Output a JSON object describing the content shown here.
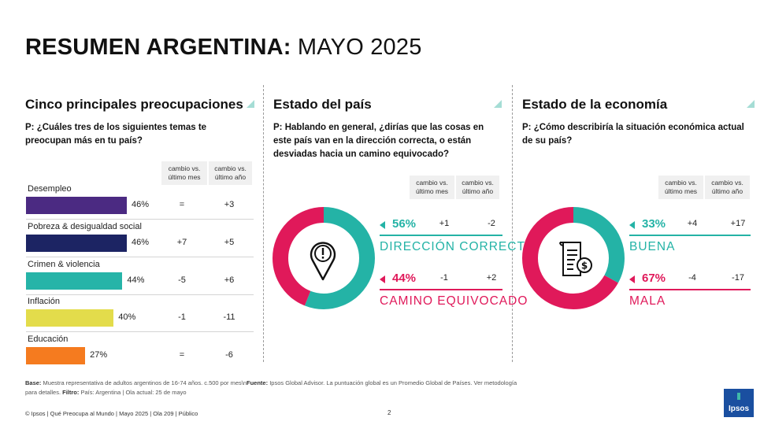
{
  "header": {
    "title_bold": "RESUMEN ARGENTINA:",
    "title_light": "MAYO 2025"
  },
  "colors": {
    "teal": "#24b3a6",
    "pink": "#e0195a",
    "accent_triangle": "#a5ddd5"
  },
  "sections": {
    "concerns": {
      "title": "Cinco principales preocupaciones",
      "question": "P: ¿Cuáles tres de los siguientes temas te preocupan más en tu país?",
      "col1": "cambio vs. último mes",
      "col2": "cambio vs. último año"
    },
    "country": {
      "title": "Estado del país",
      "question": "P: Hablando en general, ¿dirías que las cosas en este país van en la dirección correcta, o están desviadas hacia un camino equivocado?",
      "col1": "cambio vs. último mes",
      "col2": "cambio vs. último año",
      "icon": "map-pin-exclamation-icon"
    },
    "economy": {
      "title": "Estado de la economía",
      "question": "P: ¿Cómo describiría la situación económica actual de su país?",
      "col1": "cambio vs. último mes",
      "col2": "cambio vs. último año",
      "icon": "invoice-dollar-icon"
    }
  },
  "chart_data": [
    {
      "type": "bar",
      "title": "Cinco principales preocupaciones",
      "xlim": [
        0,
        50
      ],
      "categories": [
        "Desempleo",
        "Pobreza & desigualdad social",
        "Crimen & violencia",
        "Inflación",
        "Educación"
      ],
      "values": [
        46,
        46,
        44,
        40,
        27
      ],
      "value_labels": [
        "46%",
        "46%",
        "44%",
        "40%",
        "27%"
      ],
      "bar_colors": [
        "#4b2a82",
        "#1c2463",
        "#26b4a8",
        "#e3dc4b",
        "#f57b1f"
      ],
      "change_vs_last_month": [
        "=",
        "+7",
        "-5",
        "-1",
        "="
      ],
      "change_vs_last_year": [
        "+3",
        "+5",
        "+6",
        "-11",
        "-6"
      ]
    },
    {
      "type": "pie",
      "title": "Estado del país",
      "categories": [
        "DIRECCIÓN CORRECTA",
        "CAMINO EQUIVOCADO"
      ],
      "values": [
        56,
        44
      ],
      "value_labels": [
        "56%",
        "44%"
      ],
      "colors": [
        "#24b3a6",
        "#e0195a"
      ],
      "change_vs_last_month": [
        "+1",
        "-1"
      ],
      "change_vs_last_year": [
        "-2",
        "+2"
      ]
    },
    {
      "type": "pie",
      "title": "Estado de la economía",
      "categories": [
        "BUENA",
        "MALA"
      ],
      "values": [
        33,
        67
      ],
      "value_labels": [
        "33%",
        "67%"
      ],
      "colors": [
        "#24b3a6",
        "#e0195a"
      ],
      "change_vs_last_month": [
        "+4",
        "-4"
      ],
      "change_vs_last_year": [
        "+17",
        "-17"
      ]
    }
  ],
  "footer": {
    "base_label": "Base:",
    "base_text": " Muestra representativa de adultos argentinos de 16-74 años. c.500 por mes\\n",
    "source_label": "Fuente:",
    "source_text": " Ipsos Global Advisor. La puntuación global es un Promedio Global de Países. Ver metodología para detalles. ",
    "filter_label": "Filtro:",
    "filter_text": " País: Argentina | Ola actual: 25 de mayo",
    "copyright": "© Ipsos | Qué Preocupa al Mundo | Mayo 2025 | Ola 209 | Público",
    "page_number": "2",
    "logo": "Ipsos"
  }
}
